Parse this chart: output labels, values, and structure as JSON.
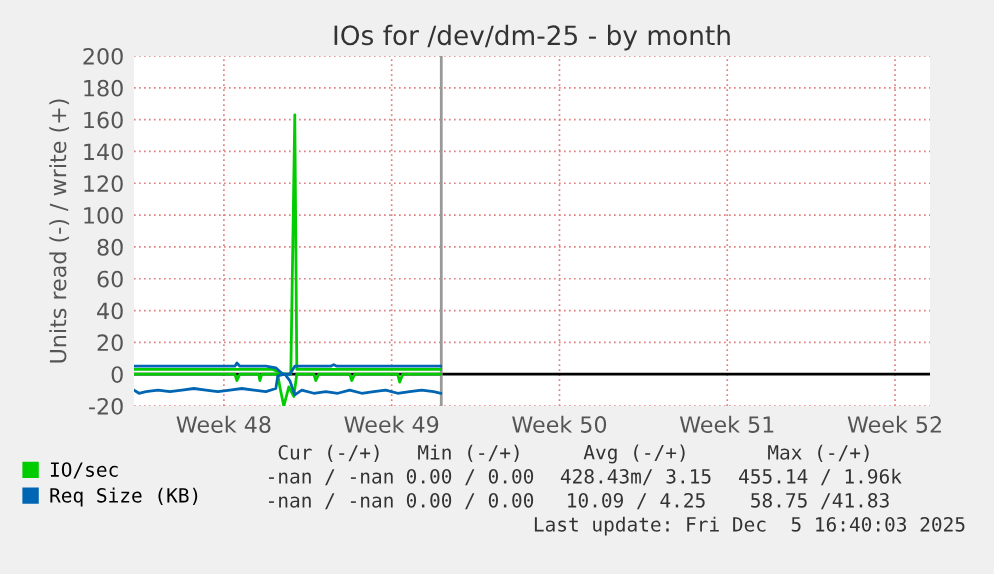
{
  "chart_data": {
    "type": "line",
    "title": "IOs for /dev/dm-25 - by month",
    "ylabel": "Units read (-) / write (+)",
    "xlim": [
      "2025-11-22T21:00",
      "2025-12-26T02:00"
    ],
    "xticks": [
      {
        "value": "2025-11-26T15:00",
        "label": "Week 48"
      },
      {
        "value": "2025-12-03T15:00",
        "label": "Week 49"
      },
      {
        "value": "2025-12-10T15:00",
        "label": "Week 50"
      },
      {
        "value": "2025-12-17T15:00",
        "label": "Week 51"
      },
      {
        "value": "2025-12-24T15:00",
        "label": "Week 52"
      }
    ],
    "ylim": [
      -20,
      200
    ],
    "yticks": [
      -20,
      0,
      20,
      40,
      60,
      80,
      100,
      120,
      140,
      160,
      180,
      200
    ],
    "grid": true,
    "legend": "bottom",
    "series": [
      {
        "name": "IO/sec",
        "color": "#00cc00",
        "x": [
          "2025-11-22T21:00",
          "2025-11-23T21:00",
          "2025-11-24T21:00",
          "2025-11-25T21:00",
          "2025-11-26T21:00",
          "2025-11-27T04:00",
          "2025-11-27T11:00",
          "2025-11-28T04:00",
          "2025-11-28T16:00",
          "2025-11-28T23:00",
          "2025-11-29T04:00",
          "2025-11-29T10:00",
          "2025-11-29T14:00",
          "2025-11-29T16:00",
          "2025-11-29T21:00",
          "2025-11-30T09:00",
          "2025-12-01T04:00",
          "2025-12-01T21:00",
          "2025-12-02T21:00",
          "2025-12-03T21:00",
          "2025-12-04T21:00",
          "2025-12-05T16:00"
        ],
        "values": [
          3,
          3,
          3,
          3,
          3,
          3,
          3,
          3,
          3,
          1,
          0,
          0,
          163,
          3,
          3,
          3,
          3,
          3,
          3,
          3,
          3,
          3
        ]
      },
      {
        "color": "#00cc00",
        "x": [
          "2025-11-22T21:00",
          "2025-11-23T21:00",
          "2025-11-24T21:00",
          "2025-11-25T21:00",
          "2025-11-27T02:00",
          "2025-11-27T04:00",
          "2025-11-27T07:00",
          "2025-11-28T02:00",
          "2025-11-28T03:00",
          "2025-11-28T05:00",
          "2025-11-28T21:00",
          "2025-11-28T23:00",
          "2025-11-29T03:00",
          "2025-11-29T08:00",
          "2025-11-29T13:00",
          "2025-11-29T16:00",
          "2025-11-30T09:00",
          "2025-11-30T11:00",
          "2025-11-30T14:00",
          "2025-12-01T21:00",
          "2025-12-01T23:00",
          "2025-12-02T02:00",
          "2025-12-03T21:00",
          "2025-12-03T23:00",
          "2025-12-04T02:00",
          "2025-12-05T16:00"
        ],
        "values": [
          0,
          0,
          0,
          0,
          0,
          -4,
          0,
          0,
          -4,
          0,
          0,
          -8,
          -20,
          -8,
          -14,
          0,
          0,
          -4,
          0,
          0,
          -4,
          0,
          0,
          -5,
          0,
          0
        ]
      },
      {
        "name": "Req Size (KB)",
        "color": "#0066b3",
        "x": [
          "2025-11-22T21:00",
          "2025-11-23T21:00",
          "2025-11-24T21:00",
          "2025-11-25T21:00",
          "2025-11-27T02:00",
          "2025-11-27T04:00",
          "2025-11-27T07:00",
          "2025-11-28T09:00",
          "2025-11-28T19:00",
          "2025-11-29T02:00",
          "2025-11-29T09:00",
          "2025-11-29T14:00",
          "2025-11-29T21:00",
          "2025-12-01T02:00",
          "2025-12-01T05:00",
          "2025-12-01T08:00",
          "2025-12-02T09:00",
          "2025-12-03T21:00",
          "2025-12-04T21:00",
          "2025-12-05T16:00"
        ],
        "values": [
          5,
          5,
          5,
          5,
          5,
          7,
          5,
          5,
          4,
          0,
          0,
          5,
          5,
          5,
          6,
          5,
          5,
          5,
          5,
          5
        ]
      },
      {
        "color": "#0066b3",
        "x": [
          "2025-11-22T21:00",
          "2025-11-23T02:00",
          "2025-11-23T09:00",
          "2025-11-23T21:00",
          "2025-11-24T09:00",
          "2025-11-24T21:00",
          "2025-11-25T09:00",
          "2025-11-25T21:00",
          "2025-11-26T09:00",
          "2025-11-26T21:00",
          "2025-11-27T09:00",
          "2025-11-27T21:00",
          "2025-11-28T09:00",
          "2025-11-28T19:00",
          "2025-11-28T21:00",
          "2025-11-29T04:00",
          "2025-11-29T09:00",
          "2025-11-29T14:00",
          "2025-11-29T21:00",
          "2025-11-30T09:00",
          "2025-11-30T21:00",
          "2025-12-01T09:00",
          "2025-12-01T21:00",
          "2025-12-02T09:00",
          "2025-12-02T21:00",
          "2025-12-03T09:00",
          "2025-12-03T21:00",
          "2025-12-04T09:00",
          "2025-12-04T21:00",
          "2025-12-05T09:00",
          "2025-12-05T16:00"
        ],
        "values": [
          -10,
          -12,
          -11,
          -10,
          -11,
          -10,
          -9,
          -10,
          -11,
          -10,
          -9,
          -10,
          -11,
          -9,
          -1,
          0,
          -4,
          -13,
          -10,
          -12,
          -11,
          -12,
          -10,
          -12,
          -11,
          -10,
          -12,
          -11,
          -10,
          -11,
          -12
        ]
      }
    ],
    "ref_lines": [
      {
        "axis": "y",
        "value": 0,
        "color": "#000000"
      },
      {
        "axis": "x",
        "value": "2025-12-05T16:40",
        "color": "#999999"
      }
    ],
    "annotations": [
      "Cur (-/+)",
      "Min (-/+)",
      "Avg (-/+)",
      "Max (-/+)",
      "-nan / -nan",
      "0.00 / 0.00",
      "428.43m/ 3.15",
      "455.14 / 1.96k",
      "-nan / -nan",
      "0.00 / 0.00",
      "10.09 / 4.25",
      "58.75 /41.83",
      "Last update: Fri Dec  5 16:40:03 2025"
    ]
  }
}
